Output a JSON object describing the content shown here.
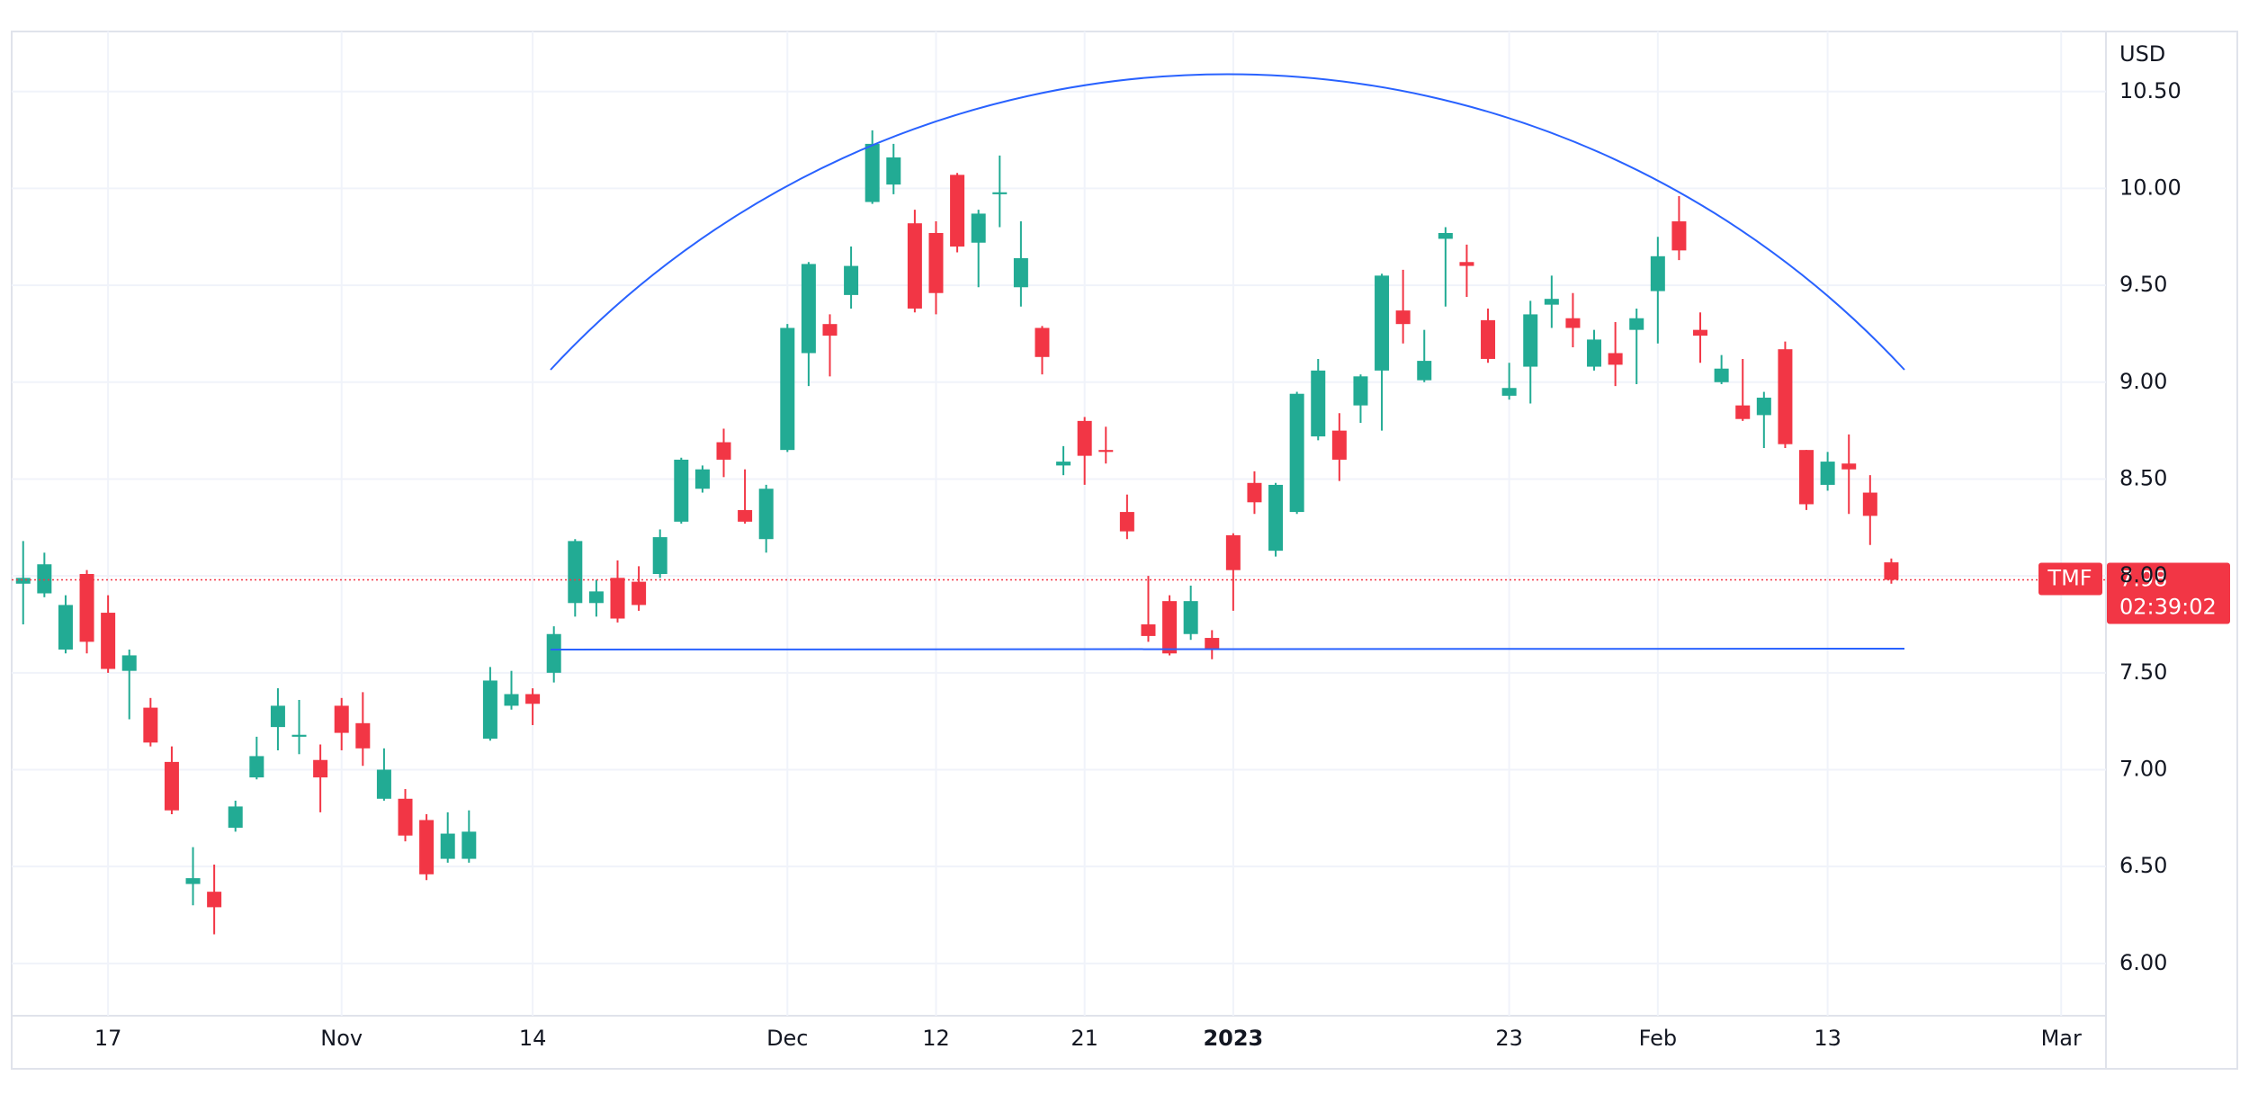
{
  "chart_data": {
    "type": "candlestick",
    "currency": "USD",
    "symbol": "TMF",
    "last_price": 7.98,
    "countdown": "02:39:02",
    "up_color": "#22ab94",
    "down_color": "#f23645",
    "grid": true,
    "ylim": [
      5.73,
      10.81
    ],
    "yticks": [
      {
        "value": 6,
        "label": "6.00"
      },
      {
        "value": 6.5,
        "label": "6.50"
      },
      {
        "value": 7,
        "label": "7.00"
      },
      {
        "value": 7.5,
        "label": "7.50"
      },
      {
        "value": 8,
        "label": "8.00"
      },
      {
        "value": 8.5,
        "label": "8.50"
      },
      {
        "value": 9,
        "label": "9.00"
      },
      {
        "value": 9.5,
        "label": "9.50"
      },
      {
        "value": 10,
        "label": "10.00"
      },
      {
        "value": 10.5,
        "label": "10.50"
      }
    ],
    "xlim": [
      -0.54,
      98.11
    ],
    "xticks": [
      {
        "value": 4,
        "label": "17"
      },
      {
        "value": 15,
        "label": "Nov"
      },
      {
        "value": 24,
        "label": "14"
      },
      {
        "value": 36,
        "label": "Dec"
      },
      {
        "value": 43,
        "label": "12"
      },
      {
        "value": 50,
        "label": "21"
      },
      {
        "value": 57,
        "label": "2023"
      },
      {
        "value": 70,
        "label": "23"
      },
      {
        "value": 77,
        "label": "Feb"
      },
      {
        "value": 85,
        "label": "13"
      },
      {
        "value": 96,
        "label": "Mar"
      }
    ],
    "open": [
      7.96,
      7.91,
      7.62,
      8.01,
      7.81,
      7.51,
      7.32,
      7.04,
      6.41,
      6.37,
      6.7,
      6.96,
      7.22,
      7.17,
      7.05,
      7.33,
      7.24,
      6.85,
      6.85,
      6.74,
      6.54,
      6.54,
      7.16,
      7.33,
      7.39,
      7.5,
      7.86,
      7.86,
      7.99,
      7.97,
      8.01,
      8.28,
      8.45,
      8.69,
      8.34,
      8.19,
      8.65,
      9.15,
      9.3,
      9.45,
      9.93,
      10.02,
      9.82,
      9.77,
      10.07,
      9.72,
      9.97,
      9.49,
      9.28,
      8.57,
      8.8,
      8.65,
      8.33,
      7.75,
      7.87,
      7.7,
      7.68,
      8.21,
      8.48,
      8.13,
      8.33,
      8.72,
      8.75,
      8.88,
      9.06,
      9.37,
      9.01,
      9.74,
      9.62,
      9.32,
      8.93,
      9.08,
      9.4,
      9.33,
      9.08,
      9.15,
      9.27,
      9.47,
      9.83,
      9.27,
      9.0,
      8.88,
      8.83,
      9.17,
      8.65,
      8.47,
      8.58,
      8.43,
      8.07
    ],
    "high": [
      8.18,
      8.12,
      7.9,
      8.03,
      7.9,
      7.62,
      7.37,
      7.12,
      6.6,
      6.51,
      6.84,
      7.17,
      7.42,
      7.36,
      7.13,
      7.37,
      7.4,
      7.11,
      6.9,
      6.77,
      6.78,
      6.79,
      7.53,
      7.51,
      7.42,
      7.74,
      8.19,
      7.98,
      8.08,
      8.05,
      8.24,
      8.61,
      8.57,
      8.76,
      8.55,
      8.47,
      9.3,
      9.62,
      9.35,
      9.7,
      10.3,
      10.23,
      9.89,
      9.83,
      10.08,
      9.89,
      10.17,
      9.83,
      9.29,
      8.67,
      8.82,
      8.77,
      8.42,
      8.0,
      7.9,
      7.95,
      7.72,
      8.22,
      8.54,
      8.48,
      8.95,
      9.12,
      8.84,
      9.04,
      9.56,
      9.58,
      9.27,
      9.8,
      9.71,
      9.38,
      9.1,
      9.42,
      9.55,
      9.46,
      9.27,
      9.31,
      9.38,
      9.75,
      9.96,
      9.36,
      9.14,
      9.12,
      8.95,
      9.21,
      8.65,
      8.64,
      8.73,
      8.52,
      8.09
    ],
    "low": [
      7.75,
      7.89,
      7.6,
      7.6,
      7.5,
      7.26,
      7.12,
      6.77,
      6.3,
      6.15,
      6.68,
      6.95,
      7.1,
      7.08,
      6.78,
      7.1,
      7.02,
      6.84,
      6.63,
      6.43,
      6.52,
      6.52,
      7.15,
      7.31,
      7.23,
      7.45,
      7.79,
      7.79,
      7.76,
      7.82,
      7.99,
      8.27,
      8.43,
      8.51,
      8.27,
      8.12,
      8.64,
      8.98,
      9.03,
      9.38,
      9.92,
      9.97,
      9.36,
      9.35,
      9.67,
      9.49,
      9.8,
      9.39,
      9.04,
      8.52,
      8.47,
      8.58,
      8.19,
      7.66,
      7.59,
      7.67,
      7.57,
      7.82,
      8.32,
      8.1,
      8.32,
      8.7,
      8.49,
      8.79,
      8.75,
      9.2,
      9.0,
      9.39,
      9.44,
      9.1,
      8.91,
      8.89,
      9.28,
      9.18,
      9.06,
      8.98,
      8.99,
      9.2,
      9.63,
      9.1,
      8.99,
      8.8,
      8.66,
      8.66,
      8.34,
      8.44,
      8.32,
      8.16,
      7.96
    ],
    "close": [
      7.99,
      8.06,
      7.85,
      7.66,
      7.52,
      7.59,
      7.14,
      6.79,
      6.44,
      6.29,
      6.81,
      7.07,
      7.33,
      7.18,
      6.96,
      7.19,
      7.11,
      7.0,
      6.66,
      6.46,
      6.67,
      6.68,
      7.46,
      7.39,
      7.34,
      7.7,
      8.18,
      7.92,
      7.78,
      7.85,
      8.2,
      8.6,
      8.55,
      8.6,
      8.28,
      8.45,
      9.28,
      9.61,
      9.24,
      9.6,
      10.23,
      10.16,
      9.38,
      9.46,
      9.7,
      9.87,
      9.98,
      9.64,
      9.13,
      8.59,
      8.62,
      8.64,
      8.23,
      7.69,
      7.6,
      7.87,
      7.62,
      8.03,
      8.38,
      8.47,
      8.94,
      9.06,
      8.6,
      9.03,
      9.55,
      9.3,
      9.11,
      9.77,
      9.6,
      9.12,
      8.97,
      9.35,
      9.43,
      9.28,
      9.22,
      9.09,
      9.33,
      9.65,
      9.68,
      9.24,
      9.07,
      8.81,
      8.92,
      8.68,
      8.37,
      8.59,
      8.55,
      8.31,
      7.98
    ]
  }
}
